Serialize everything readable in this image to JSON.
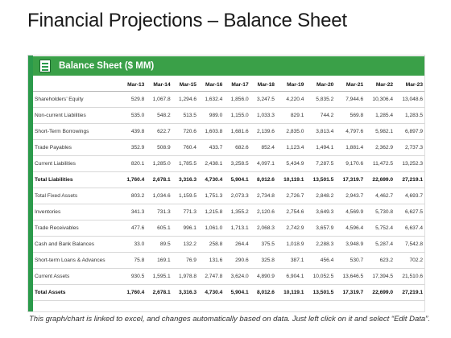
{
  "title": "Financial Projections – Balance Sheet",
  "panel": {
    "header": "Balance Sheet ($ MM)"
  },
  "columns": [
    "",
    "Mar-13",
    "Mar-14",
    "Mar-15",
    "Mar-16",
    "Mar-17",
    "Mar-18",
    "Mar-19",
    "Mar-20",
    "Mar-21",
    "Mar-22",
    "Mar-23"
  ],
  "rows": [
    {
      "label": "Shareholders’ Equity",
      "bold": false,
      "values": [
        "529.8",
        "1,067.8",
        "1,294.6",
        "1,632.4",
        "1,856.0",
        "3,247.5",
        "4,220.4",
        "5,835.2",
        "7,944.6",
        "10,306.4",
        "13,048.6"
      ]
    },
    {
      "label": "Non-current Liabilities",
      "bold": false,
      "values": [
        "535.0",
        "548.2",
        "513.5",
        "989.0",
        "1,155.0",
        "1,033.3",
        "829.1",
        "744.2",
        "569.8",
        "1,285.4",
        "1,283.5"
      ]
    },
    {
      "label": "Short-Term Borrowings",
      "bold": false,
      "values": [
        "439.8",
        "622.7",
        "720.6",
        "1,603.8",
        "1,681.6",
        "2,139.6",
        "2,835.0",
        "3,813.4",
        "4,797.6",
        "5,982.1",
        "6,897.9"
      ]
    },
    {
      "label": "Trade Payables",
      "bold": false,
      "values": [
        "352.9",
        "508.9",
        "760.4",
        "433.7",
        "682.6",
        "852.4",
        "1,123.4",
        "1,494.1",
        "1,881.4",
        "2,362.9",
        "2,737.3"
      ]
    },
    {
      "label": "Current Liabilities",
      "bold": false,
      "values": [
        "820.1",
        "1,285.0",
        "1,785.5",
        "2,438.1",
        "3,258.5",
        "4,097.1",
        "5,434.9",
        "7,287.5",
        "9,170.6",
        "11,472.5",
        "13,252.3"
      ]
    },
    {
      "label": "Total Liabilities",
      "bold": true,
      "values": [
        "1,760.4",
        "2,678.1",
        "3,316.3",
        "4,730.4",
        "5,904.1",
        "8,012.6",
        "10,119.1",
        "13,501.5",
        "17,319.7",
        "22,699.0",
        "27,219.1"
      ]
    },
    {
      "label": "Total Fixed Assets",
      "bold": false,
      "values": [
        "803.2",
        "1,034.6",
        "1,159.5",
        "1,751.3",
        "2,073.3",
        "2,734.8",
        "2,726.7",
        "2,848.2",
        "2,943.7",
        "4,462.7",
        "4,693.7"
      ]
    },
    {
      "label": "Inventories",
      "bold": false,
      "values": [
        "341.3",
        "731.3",
        "771.3",
        "1,215.8",
        "1,355.2",
        "2,120.6",
        "2,754.6",
        "3,649.3",
        "4,569.9",
        "5,730.8",
        "6,627.5"
      ]
    },
    {
      "label": "Trade Receivables",
      "bold": false,
      "values": [
        "477.6",
        "605.1",
        "996.1",
        "1,061.0",
        "1,713.1",
        "2,068.3",
        "2,742.9",
        "3,657.9",
        "4,596.4",
        "5,752.4",
        "6,637.4"
      ]
    },
    {
      "label": "Cash and Bank Balances",
      "bold": false,
      "values": [
        "33.0",
        "89.5",
        "132.2",
        "258.8",
        "264.4",
        "375.5",
        "1,018.9",
        "2,288.3",
        "3,948.9",
        "5,287.4",
        "7,542.8"
      ]
    },
    {
      "label": "Short-term Loans & Advances",
      "bold": false,
      "values": [
        "75.8",
        "169.1",
        "76.9",
        "131.6",
        "290.6",
        "325.8",
        "387.1",
        "456.4",
        "530.7",
        "623.2",
        "702.2"
      ]
    },
    {
      "label": "Current Assets",
      "bold": false,
      "values": [
        "930.5",
        "1,595.1",
        "1,978.8",
        "2,747.8",
        "3,624.0",
        "4,890.9",
        "6,904.1",
        "10,052.5",
        "13,646.5",
        "17,394.5",
        "21,510.6"
      ]
    },
    {
      "label": "Total Assets",
      "bold": true,
      "values": [
        "1,760.4",
        "2,678.1",
        "3,316.3",
        "4,730.4",
        "5,904.1",
        "8,012.6",
        "10,119.1",
        "13,501.5",
        "17,319.7",
        "22,699.0",
        "27,219.1"
      ]
    }
  ],
  "footer": "This graph/chart is linked to excel, and changes automatically based on data. Just left click on it and select “Edit Data”.",
  "colors": {
    "accent_green": "#3aa048",
    "rail_green": "#2b9a4b"
  },
  "icons": {
    "panel_header_icon": "document-icon"
  }
}
